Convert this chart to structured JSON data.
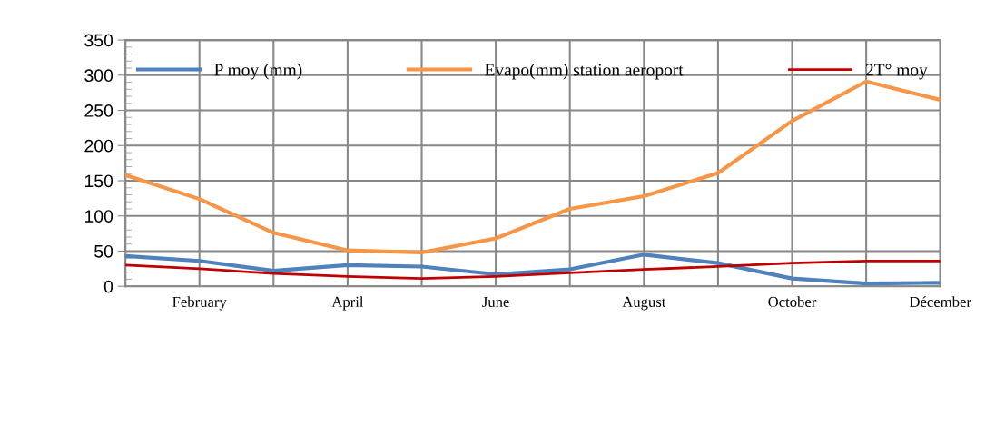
{
  "chart_data": {
    "type": "line",
    "categories": [
      null,
      "February",
      null,
      "April",
      null,
      "June",
      null,
      "August",
      null,
      "October",
      null,
      "Décember"
    ],
    "series": [
      {
        "name": "P moy (mm)",
        "color": "#4f81bd",
        "values": [
          43,
          36,
          22,
          30,
          28,
          17,
          24,
          45,
          33,
          11,
          4,
          5
        ]
      },
      {
        "name": "Evapo(mm) station aeroport",
        "color": "#f79646",
        "values": [
          158,
          124,
          76,
          51,
          48,
          68,
          110,
          128,
          161,
          235,
          291,
          265
        ]
      },
      {
        "name": "2T° moy",
        "color": "#c00000",
        "values": [
          30,
          25,
          18,
          14,
          11,
          14,
          19,
          24,
          28,
          33,
          36,
          36
        ]
      }
    ],
    "ylim": [
      0,
      350
    ],
    "yticks": [
      0,
      50,
      100,
      150,
      200,
      250,
      300,
      350
    ],
    "grid": true,
    "legend": "top",
    "marker": "none",
    "line_style": "solid"
  }
}
